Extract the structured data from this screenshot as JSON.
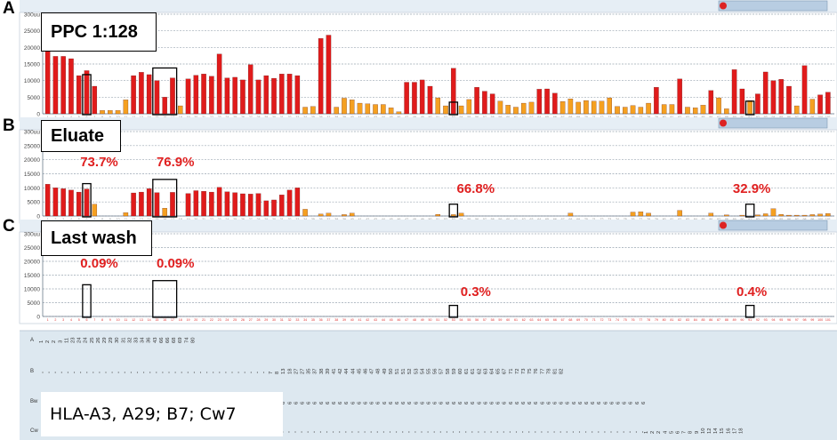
{
  "panel_letters": [
    "A",
    "B",
    "C"
  ],
  "hla_label": "HLA-A3, A29; B7; Cw7",
  "chart_data": [
    {
      "type": "bar",
      "panel": "A",
      "title": "PPC 1:128",
      "ylabel": "",
      "y_ticks": [
        "0",
        "5000",
        "10000",
        "15000",
        "20000",
        "25000",
        "300uu"
      ],
      "ylim": [
        0,
        30000
      ],
      "grid": true,
      "colors": {
        "bar_high": "#e01b1b",
        "bar_low": "#f5a020"
      },
      "values": [
        19800,
        17300,
        17300,
        16600,
        11500,
        13000,
        8300,
        1000,
        1000,
        1000,
        4200,
        11500,
        12500,
        11800,
        10000,
        5000,
        10800,
        2400,
        10500,
        11600,
        12000,
        11300,
        18000,
        10800,
        11000,
        10200,
        14800,
        10200,
        11500,
        10700,
        12000,
        12000,
        11500,
        2000,
        2200,
        22700,
        23700,
        2000,
        4700,
        4200,
        3200,
        3000,
        2800,
        2800,
        1800,
        600,
        9500,
        9500,
        10200,
        8300,
        4800,
        2400,
        13700,
        2400,
        4300,
        8000,
        6800,
        6000,
        3800,
        2600,
        2000,
        3200,
        3500,
        7400,
        7500,
        6200,
        3700,
        4500,
        3500,
        4000,
        3800,
        3800,
        4800,
        2200,
        2000,
        2500,
        2000,
        3200,
        8000,
        2800,
        2800,
        10500,
        2000,
        1800,
        2600,
        7000,
        4800,
        1500,
        13300,
        7500,
        4000,
        6000,
        12600,
        10000,
        10400,
        8300,
        2400,
        14500,
        4400,
        5700,
        6500
      ],
      "highlight_boxes": [
        5,
        14,
        15,
        16,
        52,
        90
      ],
      "annotations": []
    },
    {
      "type": "bar",
      "panel": "B",
      "title": "Eluate",
      "ylabel": "",
      "y_ticks": [
        "0",
        "5000",
        "10000",
        "15000",
        "20000",
        "25000",
        "300uu"
      ],
      "ylim": [
        0,
        30000
      ],
      "grid": true,
      "colors": {
        "bar_high": "#e01b1b",
        "bar_low": "#f5a020"
      },
      "values": [
        11300,
        10000,
        9700,
        9200,
        8500,
        9600,
        4200,
        0,
        0,
        0,
        1200,
        8200,
        8500,
        9700,
        8300,
        2800,
        8400,
        0,
        8000,
        9000,
        8800,
        8500,
        10200,
        8600,
        8300,
        7900,
        7800,
        8000,
        5400,
        5700,
        7500,
        9200,
        10000,
        2400,
        0,
        700,
        1000,
        0,
        500,
        1000,
        0,
        0,
        0,
        0,
        0,
        0,
        0,
        0,
        0,
        0,
        600,
        0,
        500,
        1000,
        0,
        0,
        0,
        0,
        0,
        0,
        0,
        0,
        0,
        0,
        0,
        0,
        0,
        1000,
        0,
        0,
        0,
        0,
        0,
        0,
        0,
        1400,
        1500,
        1000,
        0,
        0,
        0,
        2000,
        0,
        0,
        0,
        1000,
        0,
        400,
        0,
        300,
        0,
        400,
        800,
        2600,
        600,
        300,
        300,
        300,
        500,
        700,
        900
      ],
      "highlight_boxes": [
        5,
        14,
        15,
        16,
        52,
        90
      ],
      "annotations": [
        "73.7%",
        "76.9%",
        "66.8%",
        "32.9%"
      ]
    },
    {
      "type": "bar",
      "panel": "C",
      "title": "Last wash",
      "ylabel": "",
      "y_ticks": [
        "0",
        "5000",
        "10000",
        "15000",
        "20000",
        "25000",
        "300uu"
      ],
      "ylim": [
        0,
        30000
      ],
      "grid": true,
      "colors": {
        "bar_high": "#e01b1b",
        "bar_low": "#f5a020"
      },
      "values": [
        0,
        0,
        0,
        0,
        0,
        0,
        0,
        0,
        0,
        0,
        0,
        0,
        0,
        0,
        0,
        0,
        0,
        0,
        0,
        0,
        0,
        0,
        0,
        0,
        0,
        0,
        0,
        0,
        0,
        0,
        0,
        0,
        0,
        0,
        0,
        0,
        0,
        0,
        0,
        0,
        0,
        0,
        0,
        0,
        0,
        0,
        0,
        0,
        0,
        0,
        0,
        0,
        0,
        0,
        0,
        0,
        0,
        0,
        0,
        0,
        0,
        0,
        0,
        0,
        0,
        0,
        0,
        0,
        0,
        0,
        0,
        0,
        0,
        0,
        0,
        0,
        0,
        0,
        0,
        0,
        0,
        0,
        0,
        0,
        0,
        0,
        0,
        0,
        0,
        0,
        0,
        0,
        0,
        0,
        0,
        0,
        0,
        0,
        0,
        0,
        0
      ],
      "highlight_boxes": [
        5,
        14,
        15,
        16,
        52,
        90
      ],
      "annotations": [
        "0.09%",
        "0.09%",
        "0.3%",
        "0.4%"
      ]
    }
  ],
  "allele_table": {
    "row_labels": [
      "A",
      "B",
      "Bw",
      "Cw"
    ],
    "A": [
      "1",
      "2",
      "2",
      "3",
      "11",
      "23",
      "24",
      "24",
      "25",
      "26",
      "29",
      "29",
      "30",
      "31",
      "32",
      "33",
      "34",
      "36",
      "43",
      "66",
      "66",
      "68",
      "69",
      "74",
      "80"
    ],
    "B": [
      "7",
      "8",
      "13",
      "18",
      "27",
      "27",
      "35",
      "37",
      "38",
      "39",
      "41",
      "42",
      "44",
      "44",
      "45",
      "46",
      "47",
      "48",
      "49",
      "50",
      "51",
      "51",
      "52",
      "53",
      "54",
      "55",
      "56",
      "57",
      "58",
      "59",
      "60",
      "61",
      "61",
      "62",
      "63",
      "64",
      "65",
      "67",
      "71",
      "72",
      "73",
      "75",
      "76",
      "77",
      "78",
      "81",
      "82"
    ],
    "Bw": [
      "6",
      "6",
      "6",
      "6",
      "6",
      "6",
      "6",
      "6",
      "6",
      "6",
      "6",
      "6",
      "6",
      "6",
      "6",
      "6",
      "6",
      "6",
      "6",
      "6",
      "6",
      "6",
      "6",
      "6",
      "6",
      "6",
      "6",
      "6",
      "6",
      "6",
      "6",
      "6",
      "6",
      "6",
      "6",
      "6",
      "6",
      "6",
      "6",
      "6",
      "6",
      "6",
      "6",
      "6",
      "6",
      "6",
      "6",
      "6",
      "6",
      "6",
      "6",
      "6",
      "6",
      "6",
      "6",
      "6",
      "6",
      "6",
      "6",
      "6"
    ],
    "Cw": [
      "1",
      "2",
      "2",
      "4",
      "5",
      "6",
      "7",
      "8",
      "9",
      "10",
      "12",
      "14",
      "15",
      "16",
      "17",
      "18"
    ]
  }
}
